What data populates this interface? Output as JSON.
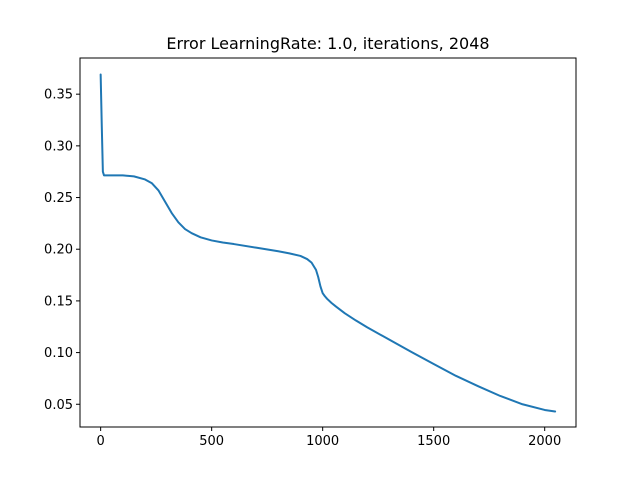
{
  "chart_data": {
    "type": "line",
    "title": "Error LearningRate: 1.0, iterations, 2048",
    "xlabel": "",
    "ylabel": "",
    "xlim": [
      -93,
      2141
    ],
    "ylim": [
      0.028,
      0.385
    ],
    "x_ticks": [
      0,
      500,
      1000,
      1500,
      2000
    ],
    "x_tick_labels": [
      "0",
      "500",
      "1000",
      "1500",
      "2000"
    ],
    "y_ticks": [
      0.05,
      0.1,
      0.15,
      0.2,
      0.25,
      0.3,
      0.35
    ],
    "y_tick_labels": [
      "0.05",
      "0.10",
      "0.15",
      "0.20",
      "0.25",
      "0.30",
      "0.35"
    ],
    "grid": false,
    "legend": false,
    "series": [
      {
        "color": "#1f77b4",
        "x": [
          0,
          5,
          10,
          15,
          25,
          50,
          100,
          150,
          200,
          230,
          260,
          290,
          320,
          350,
          380,
          410,
          450,
          500,
          550,
          600,
          700,
          800,
          850,
          900,
          930,
          950,
          970,
          980,
          990,
          1000,
          1010,
          1020,
          1040,
          1060,
          1100,
          1150,
          1200,
          1300,
          1400,
          1500,
          1600,
          1700,
          1800,
          1900,
          2000,
          2047
        ],
        "y": [
          0.369,
          0.32,
          0.275,
          0.2715,
          0.2715,
          0.2715,
          0.2714,
          0.2705,
          0.2675,
          0.264,
          0.257,
          0.246,
          0.235,
          0.226,
          0.2195,
          0.2155,
          0.2115,
          0.2085,
          0.2065,
          0.205,
          0.2015,
          0.198,
          0.196,
          0.1935,
          0.1905,
          0.187,
          0.18,
          0.173,
          0.164,
          0.1575,
          0.1545,
          0.152,
          0.148,
          0.1445,
          0.138,
          0.131,
          0.1245,
          0.1125,
          0.1005,
          0.089,
          0.0775,
          0.0675,
          0.058,
          0.05,
          0.0445,
          0.043
        ]
      }
    ]
  }
}
